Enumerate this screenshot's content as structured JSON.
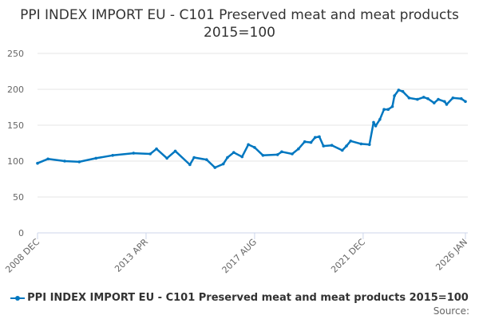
{
  "chart_data": {
    "type": "line",
    "title": "PPI INDEX IMPORT EU - C101 Preserved meat and meat products 2015=100",
    "xlabel": "",
    "ylabel": "",
    "ylim": [
      0,
      250
    ],
    "yticks": [
      "0",
      "50",
      "100",
      "150",
      "200",
      "250"
    ],
    "xticks": [
      {
        "date": "2008-12",
        "label": "2008 DEC"
      },
      {
        "date": "2013-04",
        "label": "2013 APR"
      },
      {
        "date": "2017-08",
        "label": "2017 AUG"
      },
      {
        "date": "2021-12",
        "label": "2021 DEC"
      },
      {
        "date": "2026-01",
        "label": "2026 JAN"
      }
    ],
    "grid": true,
    "legend_placement": "bottom",
    "color": "#0077C0",
    "series": [
      {
        "name": "PPI INDEX IMPORT EU - C101 Preserved meat and meat products 2015=100",
        "x": [
          "2008-12",
          "2009-05",
          "2010-01",
          "2010-08",
          "2011-04",
          "2011-12",
          "2012-10",
          "2013-06",
          "2013-09",
          "2014-02",
          "2014-06",
          "2015-01",
          "2015-03",
          "2015-09",
          "2016-01",
          "2016-05",
          "2016-07",
          "2016-10",
          "2017-02",
          "2017-05",
          "2017-08",
          "2017-12",
          "2018-07",
          "2018-09",
          "2019-02",
          "2019-05",
          "2019-08",
          "2019-11",
          "2020-01",
          "2020-03",
          "2020-05",
          "2020-09",
          "2021-02",
          "2021-04",
          "2021-06",
          "2021-11",
          "2022-03",
          "2022-05",
          "2022-06",
          "2022-08",
          "2022-10",
          "2022-12",
          "2023-02",
          "2023-03",
          "2023-05",
          "2023-07",
          "2023-10",
          "2024-02",
          "2024-05",
          "2024-07",
          "2024-10",
          "2024-12",
          "2025-03",
          "2025-04",
          "2025-07",
          "2025-11",
          "2026-01"
        ],
        "values": [
          97,
          103,
          100,
          99,
          104,
          108,
          111,
          110,
          117,
          104,
          114,
          95,
          105,
          102,
          91,
          96,
          105,
          112,
          106,
          123,
          119,
          108,
          109,
          113,
          110,
          117,
          127,
          126,
          133,
          134,
          121,
          122,
          115,
          121,
          128,
          124,
          123,
          154,
          149,
          158,
          172,
          172,
          176,
          191,
          199,
          197,
          188,
          186,
          189,
          187,
          181,
          186,
          183,
          179,
          188,
          187,
          183
        ]
      }
    ]
  },
  "source_label": "Source:"
}
